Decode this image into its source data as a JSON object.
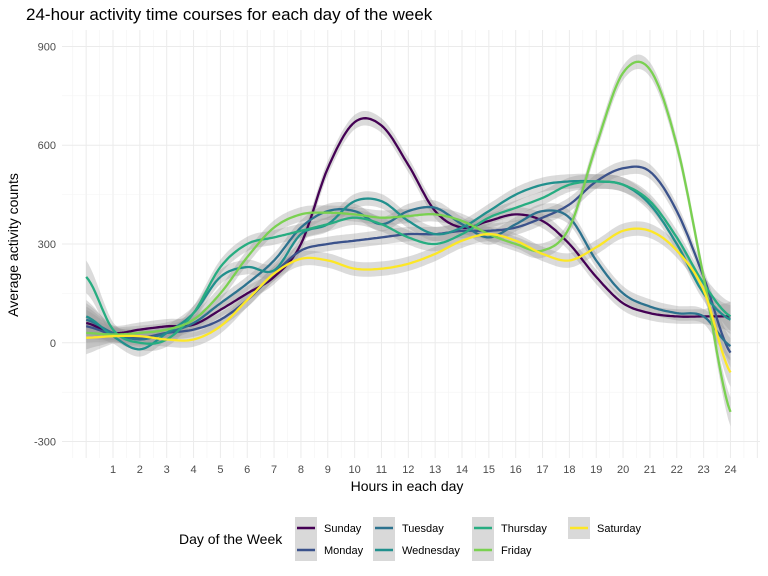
{
  "chart_data": {
    "type": "line",
    "title": "24-hour activity time courses for each day of the week",
    "xlabel": "Hours in each day",
    "ylabel": "Average activity counts",
    "xlim": [
      -0.9,
      25.1
    ],
    "ylim": [
      -350,
      950
    ],
    "x_ticks": [
      1,
      2,
      3,
      4,
      5,
      6,
      7,
      8,
      9,
      10,
      11,
      12,
      13,
      14,
      15,
      16,
      17,
      18,
      19,
      20,
      21,
      22,
      23,
      24
    ],
    "y_ticks": [
      -300,
      0,
      300,
      600,
      900
    ],
    "grid": true,
    "smoothed": true,
    "confidence_band": true,
    "legend": {
      "title": "Day of the Week",
      "position": "bottom",
      "columns": [
        [
          "Sunday",
          "Monday"
        ],
        [
          "Tuesday",
          "Wednesday"
        ],
        [
          "Thursday",
          "Friday"
        ],
        [
          "Saturday"
        ]
      ]
    },
    "x": [
      0,
      1,
      2,
      3,
      4,
      5,
      6,
      7,
      8,
      9,
      10,
      11,
      12,
      13,
      14,
      15,
      16,
      17,
      18,
      19,
      20,
      21,
      22,
      23,
      24
    ],
    "series": [
      {
        "name": "Sunday",
        "color": "#440154",
        "values": [
          60,
          30,
          40,
          50,
          55,
          100,
          150,
          200,
          300,
          530,
          670,
          660,
          540,
          400,
          350,
          370,
          390,
          370,
          300,
          200,
          120,
          90,
          80,
          80,
          80
        ]
      },
      {
        "name": "Monday",
        "color": "#3b528b",
        "values": [
          50,
          25,
          15,
          30,
          40,
          70,
          130,
          210,
          280,
          300,
          310,
          320,
          330,
          330,
          340,
          340,
          350,
          380,
          420,
          490,
          530,
          520,
          400,
          200,
          -30
        ]
      },
      {
        "name": "Tuesday",
        "color": "#2c728e",
        "values": [
          70,
          30,
          10,
          30,
          60,
          120,
          180,
          250,
          350,
          400,
          400,
          360,
          400,
          410,
          360,
          320,
          360,
          400,
          380,
          250,
          150,
          110,
          90,
          80,
          -10
        ]
      },
      {
        "name": "Wednesday",
        "color": "#21908d",
        "values": [
          80,
          20,
          -20,
          30,
          90,
          200,
          230,
          220,
          330,
          360,
          430,
          430,
          370,
          330,
          350,
          400,
          450,
          480,
          490,
          490,
          480,
          420,
          300,
          150,
          70
        ]
      },
      {
        "name": "Thursday",
        "color": "#27ad81",
        "values": [
          200,
          40,
          0,
          10,
          90,
          230,
          300,
          320,
          340,
          360,
          380,
          360,
          320,
          300,
          330,
          380,
          410,
          440,
          480,
          490,
          480,
          430,
          320,
          180,
          80
        ]
      },
      {
        "name": "Friday",
        "color": "#7ad151",
        "values": [
          30,
          25,
          30,
          40,
          70,
          150,
          260,
          350,
          390,
          395,
          390,
          380,
          385,
          390,
          370,
          330,
          300,
          280,
          350,
          600,
          820,
          830,
          600,
          200,
          -210
        ]
      },
      {
        "name": "Saturday",
        "color": "#fde725",
        "values": [
          15,
          20,
          20,
          10,
          10,
          50,
          130,
          210,
          255,
          250,
          225,
          225,
          240,
          270,
          310,
          330,
          310,
          270,
          250,
          290,
          340,
          340,
          280,
          160,
          -90
        ]
      }
    ]
  }
}
